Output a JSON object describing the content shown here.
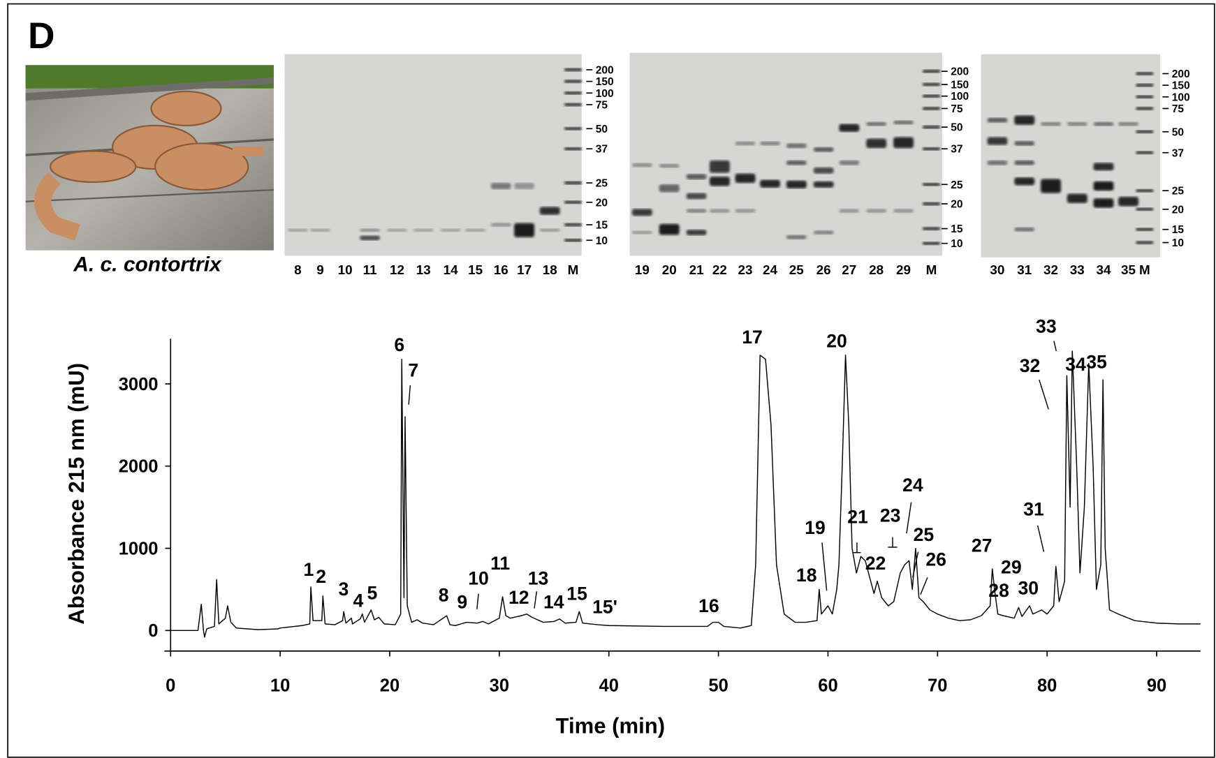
{
  "panel_label": "D",
  "photo_caption": "A. c. contortrix",
  "gels": [
    {
      "lanes": [
        "8",
        "9",
        "10",
        "11",
        "12",
        "13",
        "14",
        "15",
        "16",
        "17",
        "18",
        "M"
      ],
      "markers": [
        200,
        150,
        100,
        75,
        50,
        37,
        25,
        20,
        15,
        10
      ]
    },
    {
      "lanes": [
        "19",
        "20",
        "21",
        "22",
        "23",
        "24",
        "25",
        "26",
        "27",
        "28",
        "29",
        "M"
      ],
      "markers": [
        200,
        150,
        100,
        75,
        50,
        37,
        25,
        20,
        15,
        10
      ]
    },
    {
      "lanes": [
        "30",
        "31",
        "32",
        "33",
        "34",
        "35",
        "M"
      ],
      "markers": [
        200,
        150,
        100,
        75,
        50,
        37,
        25,
        20,
        15,
        10
      ]
    }
  ],
  "chart_data": {
    "type": "line",
    "x_label": "Time (min)",
    "y_label": "Absorbance 215 nm (mU)",
    "x": [
      0,
      2.5,
      2.8,
      3.0,
      3.1,
      3.3,
      4.0,
      4.2,
      4.4,
      5.0,
      5.2,
      5.5,
      6,
      8,
      9.8,
      10,
      12,
      12.7,
      12.8,
      13.0,
      13.8,
      13.9,
      14.1,
      15,
      15.7,
      15.8,
      16,
      16.5,
      16.6,
      17.3,
      17.5,
      17.7,
      18.3,
      18.6,
      19,
      19.5,
      20.5,
      21.0,
      21.1,
      21.3,
      21.4,
      21.6,
      22,
      22.5,
      23,
      24,
      25.2,
      25.5,
      26,
      27,
      28,
      28.5,
      29,
      30,
      30.3,
      30.6,
      31,
      32,
      32.5,
      33,
      34,
      35,
      35.5,
      36,
      37,
      37.3,
      37.6,
      39,
      40,
      45,
      49,
      49.5,
      50,
      50.5,
      52,
      53,
      53.4,
      53.8,
      54.3,
      54.8,
      55.3,
      56,
      57,
      58,
      59,
      59.2,
      59.4,
      60,
      60.4,
      60.8,
      61,
      61.3,
      61.6,
      61.9,
      62.2,
      62.6,
      63,
      63.4,
      63.8,
      64.2,
      64.5,
      64.9,
      65.5,
      66,
      66.6,
      67,
      67.4,
      67.7,
      68,
      68.3,
      68.7,
      69.3,
      70,
      71,
      72,
      73,
      74,
      74.8,
      75,
      75.2,
      75.5,
      76,
      77,
      77.4,
      77.7,
      78.4,
      78.7,
      79.5,
      80,
      80.6,
      80.8,
      81.1,
      81.6,
      81.8,
      82.1,
      82.3,
      82.7,
      83,
      83.4,
      83.8,
      84.2,
      84.5,
      84.9,
      85.1,
      85.3,
      85.7,
      86.5,
      88,
      90,
      92,
      94
    ],
    "series": [
      {
        "color": "#000000",
        "values": [
          0,
          0,
          320,
          0,
          -80,
          20,
          50,
          620,
          80,
          150,
          300,
          100,
          30,
          10,
          20,
          30,
          60,
          80,
          530,
          120,
          120,
          420,
          80,
          70,
          120,
          230,
          90,
          150,
          80,
          140,
          200,
          100,
          250,
          130,
          160,
          80,
          70,
          200,
          3300,
          400,
          2600,
          300,
          100,
          130,
          90,
          70,
          180,
          70,
          60,
          100,
          90,
          110,
          80,
          150,
          410,
          180,
          150,
          180,
          200,
          160,
          100,
          110,
          140,
          90,
          100,
          230,
          90,
          70,
          60,
          50,
          50,
          100,
          100,
          50,
          30,
          60,
          800,
          3350,
          3300,
          2500,
          800,
          200,
          100,
          100,
          120,
          500,
          200,
          300,
          200,
          500,
          800,
          2000,
          3350,
          2500,
          1000,
          700,
          900,
          850,
          650,
          450,
          600,
          400,
          300,
          350,
          700,
          800,
          850,
          500,
          1000,
          400,
          350,
          250,
          200,
          150,
          120,
          130,
          180,
          300,
          750,
          500,
          200,
          180,
          150,
          280,
          170,
          300,
          200,
          250,
          200,
          300,
          780,
          350,
          600,
          3100,
          1500,
          3400,
          2000,
          700,
          1500,
          3250,
          2000,
          500,
          800,
          3050,
          1000,
          250,
          200,
          120,
          90,
          80,
          80
        ]
      }
    ],
    "xlim": [
      0,
      94
    ],
    "ylim": [
      -250,
      3550
    ],
    "xticks": [
      0,
      10,
      20,
      30,
      40,
      50,
      60,
      70,
      80,
      90
    ],
    "yticks": [
      0,
      1000,
      2000,
      3000
    ],
    "peak_labels": [
      "1",
      "2",
      "3",
      "4",
      "5",
      "6",
      "7",
      "8",
      "9",
      "10",
      "11",
      "12",
      "13",
      "14",
      "15",
      "15'",
      "16",
      "17",
      "18",
      "19",
      "20",
      "21",
      "22",
      "23",
      "24",
      "25",
      "26",
      "27",
      "28",
      "29",
      "30",
      "31",
      "32",
      "33",
      "34",
      "35"
    ]
  }
}
